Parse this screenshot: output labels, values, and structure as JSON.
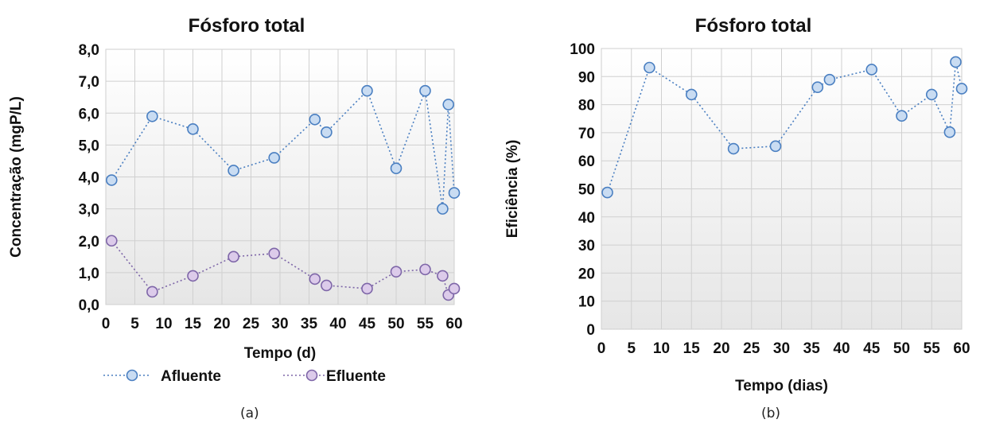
{
  "chart_data": [
    {
      "type": "line",
      "title": "Fósforo total",
      "xlabel": "Tempo (d)",
      "ylabel": "Concentração (mgP/L)",
      "caption": "(a)",
      "xlim": [
        0,
        60
      ],
      "ylim": [
        0,
        8
      ],
      "x_ticks": [
        "0",
        "5",
        "10",
        "15",
        "20",
        "25",
        "30",
        "35",
        "40",
        "45",
        "50",
        "55",
        "60"
      ],
      "y_ticks": [
        "0,0",
        "1,0",
        "2,0",
        "3,0",
        "4,0",
        "5,0",
        "6,0",
        "7,0",
        "8,0"
      ],
      "grid": true,
      "legend_position": "bottom",
      "series": [
        {
          "name": "Afluente",
          "color": "#4a7fc1",
          "fill": "#c9dcf2",
          "x": [
            1,
            8,
            15,
            22,
            29,
            36,
            38,
            45,
            50,
            55,
            58,
            59,
            60
          ],
          "y": [
            3.9,
            5.9,
            5.5,
            4.2,
            4.6,
            5.8,
            5.4,
            6.7,
            4.27,
            6.7,
            3.0,
            6.27,
            3.5
          ]
        },
        {
          "name": "Efluente",
          "color": "#7e66a8",
          "fill": "#dccbea",
          "x": [
            1,
            8,
            15,
            22,
            29,
            36,
            38,
            45,
            50,
            55,
            58,
            59,
            60
          ],
          "y": [
            2.0,
            0.4,
            0.9,
            1.5,
            1.6,
            0.8,
            0.6,
            0.5,
            1.03,
            1.1,
            0.9,
            0.3,
            0.5
          ]
        }
      ]
    },
    {
      "type": "line",
      "title": "Fósforo total",
      "xlabel": "Tempo (dias)",
      "ylabel": "Eficiência (%)",
      "caption": "(b)",
      "xlim": [
        0,
        60
      ],
      "ylim": [
        0,
        100
      ],
      "x_ticks": [
        "0",
        "5",
        "10",
        "15",
        "20",
        "25",
        "30",
        "35",
        "40",
        "45",
        "50",
        "55",
        "60"
      ],
      "y_ticks": [
        "0",
        "10",
        "20",
        "30",
        "40",
        "50",
        "60",
        "70",
        "80",
        "90",
        "100"
      ],
      "grid": true,
      "series": [
        {
          "color": "#4a7fc1",
          "fill": "#c9dcf2",
          "x": [
            1,
            8,
            15,
            22,
            29,
            36,
            38,
            45,
            50,
            55,
            58,
            59,
            60
          ],
          "y": [
            48.7,
            93.2,
            83.6,
            64.3,
            65.2,
            86.2,
            88.9,
            92.5,
            76.0,
            83.6,
            70.2,
            95.2,
            85.7
          ]
        }
      ]
    }
  ]
}
